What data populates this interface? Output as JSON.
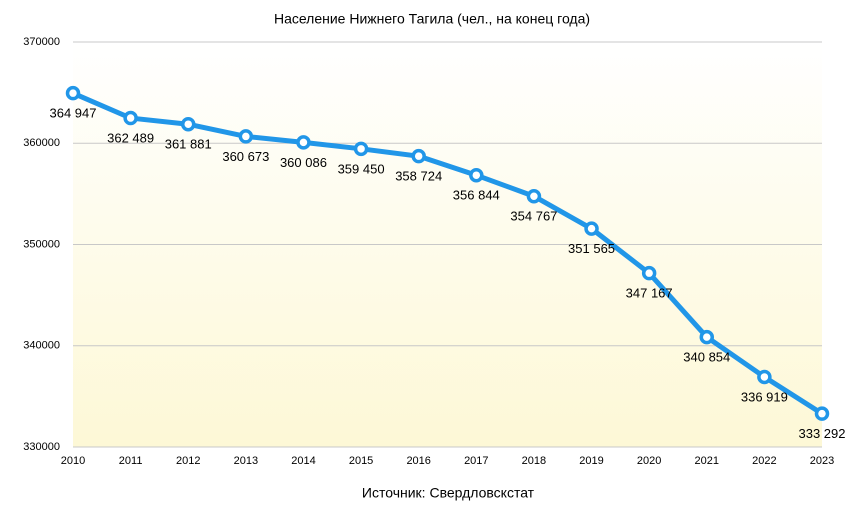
{
  "chart_data": {
    "type": "line",
    "title": "Население Нижнего Тагила (чел., на конец года)",
    "caption": "Источник: Свердловскстат",
    "categories": [
      "2010",
      "2011",
      "2012",
      "2013",
      "2014",
      "2015",
      "2016",
      "2017",
      "2018",
      "2019",
      "2020",
      "2021",
      "2022",
      "2023"
    ],
    "series": [
      {
        "name": "Население",
        "color": "#2196e8",
        "values": [
          364947,
          362489,
          361881,
          360673,
          360086,
          359450,
          358724,
          356844,
          354767,
          351565,
          347167,
          340854,
          336919,
          333292
        ],
        "value_labels": [
          "364 947",
          "362 489",
          "361 881",
          "360 673",
          "360 086",
          "359 450",
          "358 724",
          "356 844",
          "354 767",
          "351 565",
          "347 167",
          "340 854",
          "336 919",
          "333 292"
        ]
      }
    ],
    "ylim": [
      330000,
      370000
    ],
    "yticks": [
      330000,
      340000,
      350000,
      360000,
      370000
    ],
    "grid": true
  }
}
